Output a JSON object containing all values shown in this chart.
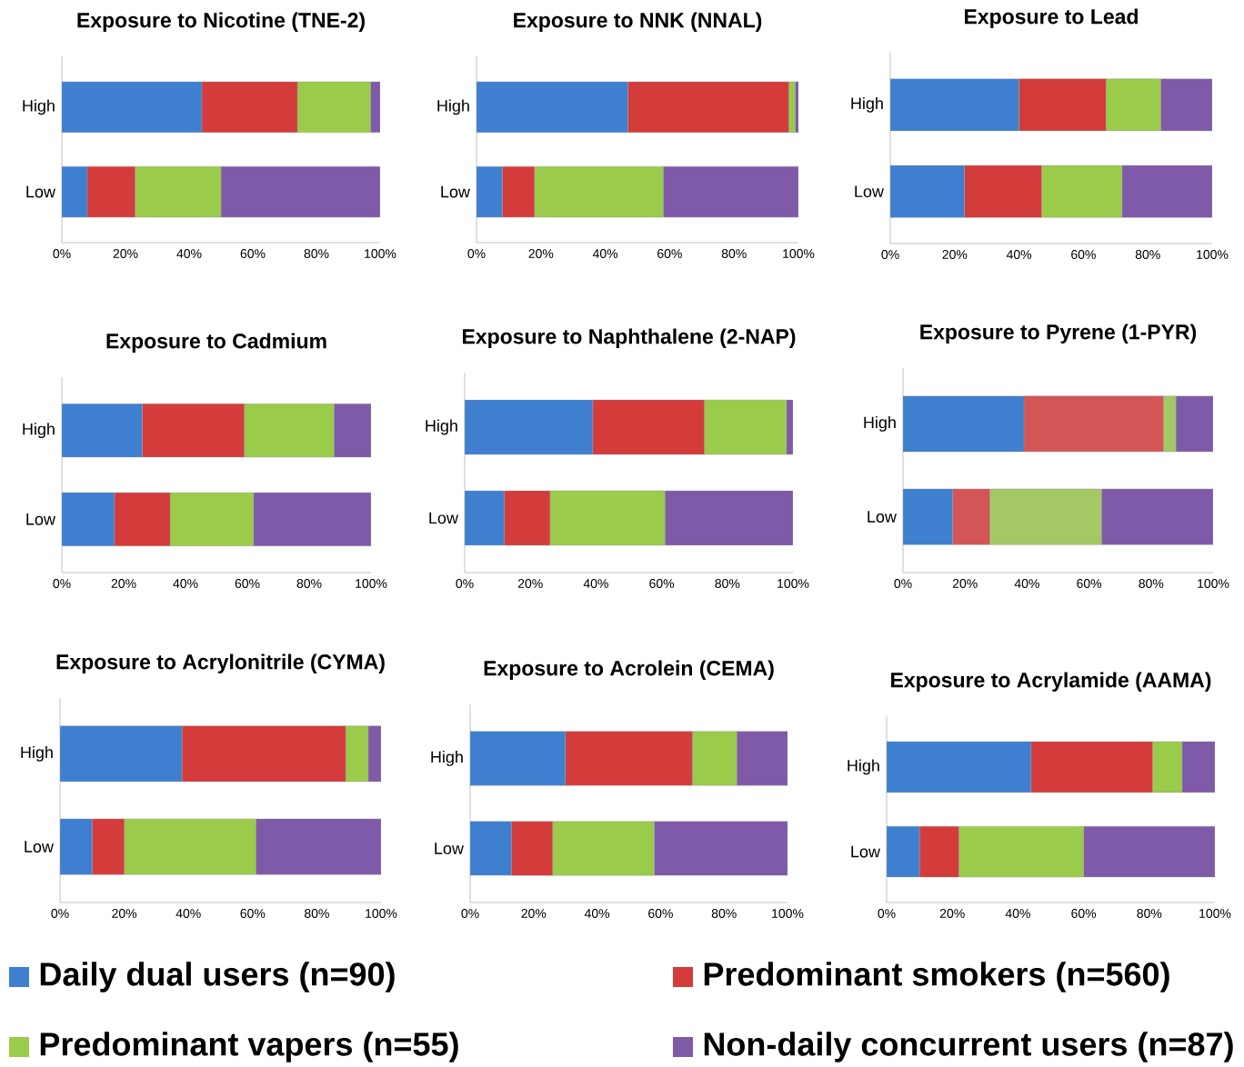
{
  "chart_data": [
    {
      "type": "bar",
      "orientation": "horizontal",
      "stacked": true,
      "title": "Exposure to Nicotine (TNE-2)",
      "categories": [
        "High",
        "Low"
      ],
      "legend": "bottom",
      "xlim": [
        0,
        100
      ],
      "xticks": [
        {
          "value": 0,
          "label": "0%"
        },
        {
          "value": 20,
          "label": "20%"
        },
        {
          "value": 40,
          "label": "40%"
        },
        {
          "value": 60,
          "label": "60%"
        },
        {
          "value": 80,
          "label": "80%"
        },
        {
          "value": 100,
          "label": "100%"
        }
      ],
      "series": [
        {
          "name": "Daily dual users (n=90)",
          "color": "#3f7fd0",
          "values": [
            44,
            8
          ]
        },
        {
          "name": "Predominant smokers (n=560)",
          "color": "#d43b3b",
          "values": [
            30,
            15
          ]
        },
        {
          "name": "Predominant vapers (n=55)",
          "color": "#9bcb4a",
          "values": [
            23,
            27
          ]
        },
        {
          "name": "Non-daily concurrent users (n=87)",
          "color": "#7f5aa8",
          "values": [
            3,
            50
          ]
        }
      ]
    },
    {
      "type": "bar",
      "orientation": "horizontal",
      "stacked": true,
      "title": "Exposure to NNK (NNAL)",
      "categories": [
        "High",
        "Low"
      ],
      "xlim": [
        0,
        100
      ],
      "xticks": [
        {
          "value": 0,
          "label": "0%"
        },
        {
          "value": 20,
          "label": "20%"
        },
        {
          "value": 40,
          "label": "40%"
        },
        {
          "value": 60,
          "label": "60%"
        },
        {
          "value": 80,
          "label": "80%"
        },
        {
          "value": 100,
          "label": "100%"
        }
      ],
      "series": [
        {
          "color": "#3f7fd0",
          "values": [
            47,
            8
          ]
        },
        {
          "color": "#d43b3b",
          "values": [
            50,
            10
          ]
        },
        {
          "color": "#9bcb4a",
          "values": [
            2,
            40
          ]
        },
        {
          "color": "#7f5aa8",
          "values": [
            1,
            42
          ]
        }
      ]
    },
    {
      "type": "bar",
      "orientation": "horizontal",
      "stacked": true,
      "title": "Exposure to Lead",
      "categories": [
        "High",
        "Low"
      ],
      "xlim": [
        0,
        100
      ],
      "xticks": [
        {
          "value": 0,
          "label": "0%"
        },
        {
          "value": 20,
          "label": "20%"
        },
        {
          "value": 40,
          "label": "40%"
        },
        {
          "value": 60,
          "label": "60%"
        },
        {
          "value": 80,
          "label": "80%"
        },
        {
          "value": 100,
          "label": "100%"
        }
      ],
      "series": [
        {
          "color": "#3f7fd0",
          "values": [
            40,
            23
          ]
        },
        {
          "color": "#d43b3b",
          "values": [
            27,
            24
          ]
        },
        {
          "color": "#9bcb4a",
          "values": [
            17,
            25
          ]
        },
        {
          "color": "#7f5aa8",
          "values": [
            16,
            28
          ]
        }
      ]
    },
    {
      "type": "bar",
      "orientation": "horizontal",
      "stacked": true,
      "title": "Exposure to Cadmium",
      "categories": [
        "High",
        "Low"
      ],
      "xlim": [
        0,
        100
      ],
      "xticks": [
        {
          "value": 0,
          "label": "0%"
        },
        {
          "value": 20,
          "label": "20%"
        },
        {
          "value": 40,
          "label": "40%"
        },
        {
          "value": 60,
          "label": "60%"
        },
        {
          "value": 80,
          "label": "80%"
        },
        {
          "value": 100,
          "label": "100%"
        }
      ],
      "series": [
        {
          "color": "#3f7fd0",
          "values": [
            26,
            17
          ]
        },
        {
          "color": "#d43b3b",
          "values": [
            33,
            18
          ]
        },
        {
          "color": "#9bcb4a",
          "values": [
            29,
            27
          ]
        },
        {
          "color": "#7f5aa8",
          "values": [
            12,
            38
          ]
        }
      ]
    },
    {
      "type": "bar",
      "orientation": "horizontal",
      "stacked": true,
      "title": "Exposure to Naphthalene (2-NAP)",
      "categories": [
        "High",
        "Low"
      ],
      "xlim": [
        0,
        100
      ],
      "xticks": [
        {
          "value": 0,
          "label": "0%"
        },
        {
          "value": 20,
          "label": "20%"
        },
        {
          "value": 40,
          "label": "40%"
        },
        {
          "value": 60,
          "label": "60%"
        },
        {
          "value": 80,
          "label": "80%"
        },
        {
          "value": 100,
          "label": "100%"
        }
      ],
      "series": [
        {
          "color": "#3f7fd0",
          "values": [
            39,
            12
          ]
        },
        {
          "color": "#d43b3b",
          "values": [
            34,
            14
          ]
        },
        {
          "color": "#9bcb4a",
          "values": [
            25,
            35
          ]
        },
        {
          "color": "#7f5aa8",
          "values": [
            2,
            39
          ]
        }
      ]
    },
    {
      "type": "bar",
      "orientation": "horizontal",
      "stacked": true,
      "title": "Exposure to Pyrene (1-PYR)",
      "categories": [
        "High",
        "Low"
      ],
      "xlim": [
        0,
        100
      ],
      "xticks": [
        {
          "value": 0,
          "label": "0%"
        },
        {
          "value": 20,
          "label": "20%"
        },
        {
          "value": 40,
          "label": "40%"
        },
        {
          "value": 60,
          "label": "60%"
        },
        {
          "value": 80,
          "label": "80%"
        },
        {
          "value": 100,
          "label": "100%"
        }
      ],
      "series": [
        {
          "color": "#3f7fd0",
          "values": [
            39,
            16
          ]
        },
        {
          "color": "#d45555",
          "values": [
            45,
            12
          ]
        },
        {
          "color": "#a4c866",
          "values": [
            4,
            36
          ]
        },
        {
          "color": "#7f5aa8",
          "values": [
            12,
            36
          ]
        }
      ]
    },
    {
      "type": "bar",
      "orientation": "horizontal",
      "stacked": true,
      "title": "Exposure to Acrylonitrile (CYMA)",
      "categories": [
        "High",
        "Low"
      ],
      "xlim": [
        0,
        100
      ],
      "xticks": [
        {
          "value": 0,
          "label": "0%"
        },
        {
          "value": 20,
          "label": "20%"
        },
        {
          "value": 40,
          "label": "40%"
        },
        {
          "value": 60,
          "label": "60%"
        },
        {
          "value": 80,
          "label": "80%"
        },
        {
          "value": 100,
          "label": "100%"
        }
      ],
      "series": [
        {
          "color": "#3f7fd0",
          "values": [
            38,
            10
          ]
        },
        {
          "color": "#d43b3b",
          "values": [
            51,
            10
          ]
        },
        {
          "color": "#9bcb4a",
          "values": [
            7,
            41
          ]
        },
        {
          "color": "#7f5aa8",
          "values": [
            4,
            39
          ]
        }
      ]
    },
    {
      "type": "bar",
      "orientation": "horizontal",
      "stacked": true,
      "title": "Exposure to Acrolein (CEMA)",
      "categories": [
        "High",
        "Low"
      ],
      "xlim": [
        0,
        100
      ],
      "xticks": [
        {
          "value": 0,
          "label": "0%"
        },
        {
          "value": 20,
          "label": "20%"
        },
        {
          "value": 40,
          "label": "40%"
        },
        {
          "value": 60,
          "label": "60%"
        },
        {
          "value": 80,
          "label": "80%"
        },
        {
          "value": 100,
          "label": "100%"
        }
      ],
      "series": [
        {
          "color": "#3f7fd0",
          "values": [
            30,
            13
          ]
        },
        {
          "color": "#d43b3b",
          "values": [
            40,
            13
          ]
        },
        {
          "color": "#9bcb4a",
          "values": [
            14,
            32
          ]
        },
        {
          "color": "#7f5aa8",
          "values": [
            16,
            42
          ]
        }
      ]
    },
    {
      "type": "bar",
      "orientation": "horizontal",
      "stacked": true,
      "title": "Exposure to Acrylamide (AAMA)",
      "categories": [
        "High",
        "Low"
      ],
      "xlim": [
        0,
        100
      ],
      "xticks": [
        {
          "value": 0,
          "label": "0%"
        },
        {
          "value": 20,
          "label": "20%"
        },
        {
          "value": 40,
          "label": "40%"
        },
        {
          "value": 60,
          "label": "60%"
        },
        {
          "value": 80,
          "label": "80%"
        },
        {
          "value": 100,
          "label": "100%"
        }
      ],
      "series": [
        {
          "color": "#3f7fd0",
          "values": [
            44,
            10
          ]
        },
        {
          "color": "#d43b3b",
          "values": [
            37,
            12
          ]
        },
        {
          "color": "#9bcb4a",
          "values": [
            9,
            38
          ]
        },
        {
          "color": "#7f5aa8",
          "values": [
            10,
            40
          ]
        }
      ]
    }
  ]
}
